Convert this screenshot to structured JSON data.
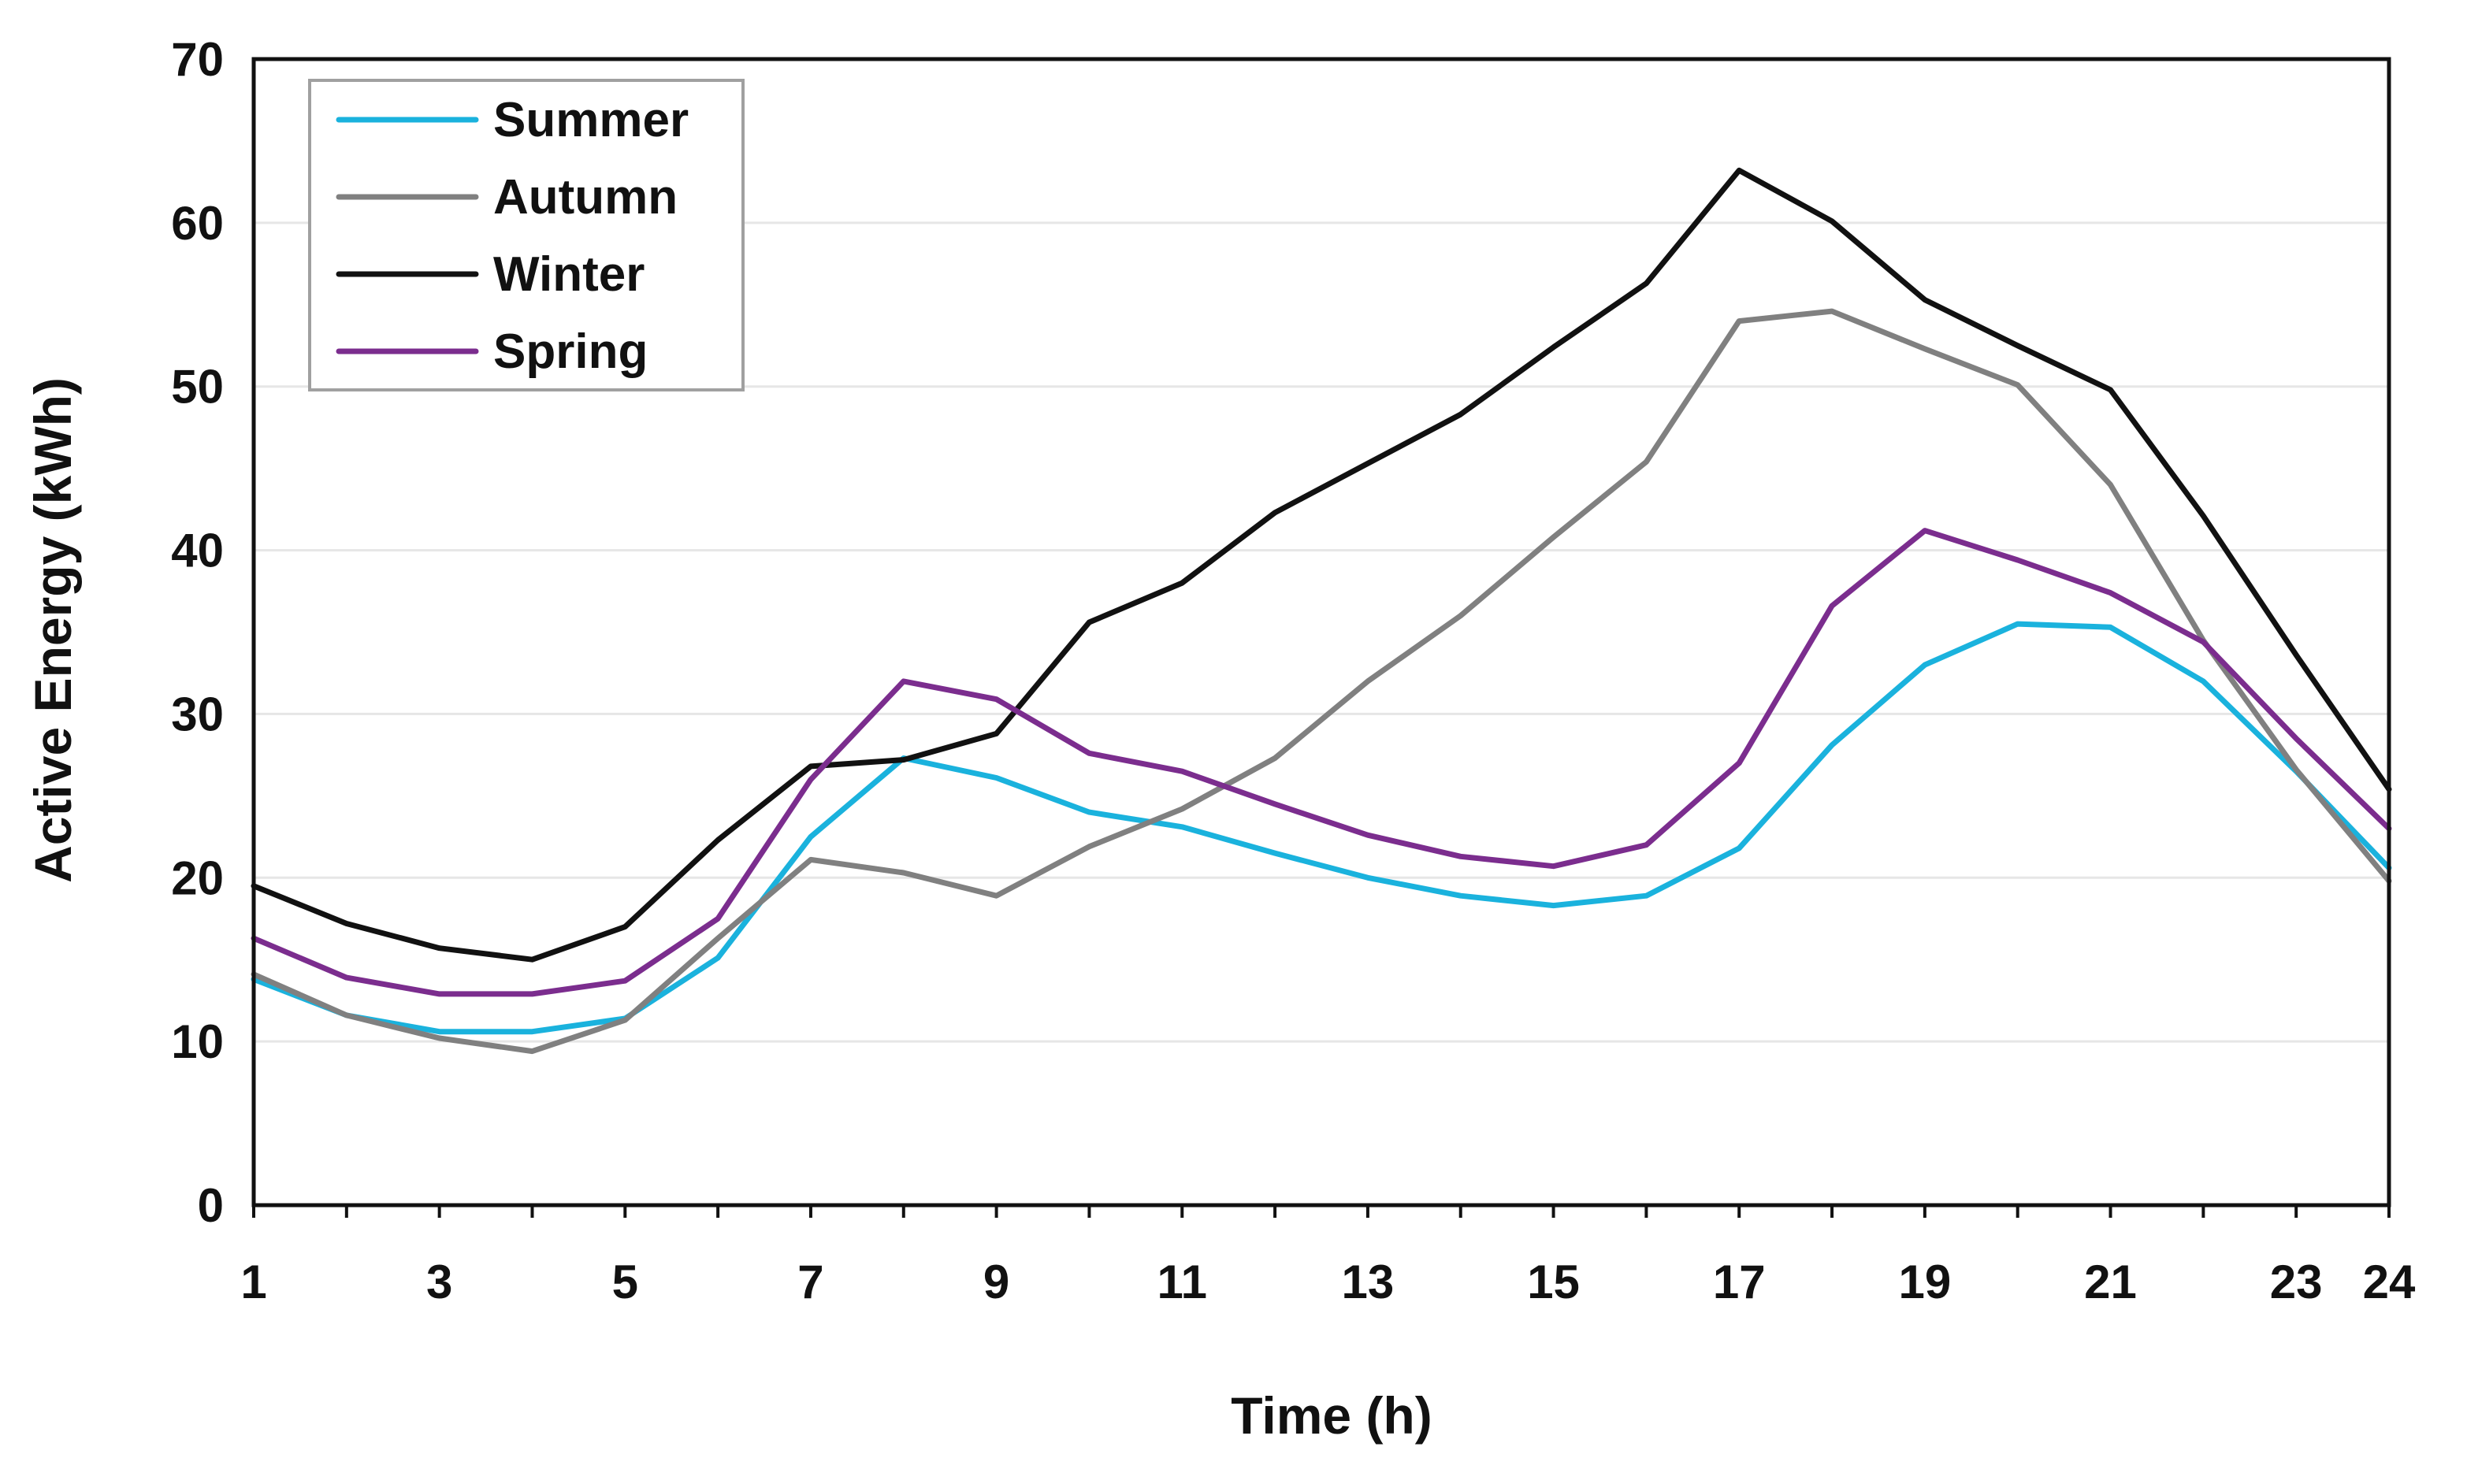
{
  "chart_data": {
    "type": "line",
    "title": "",
    "xlabel": "Time (h)",
    "ylabel": "Active Energy (kWh)",
    "xlim": [
      1,
      24
    ],
    "ylim": [
      0,
      70
    ],
    "x": [
      1,
      2,
      3,
      4,
      5,
      6,
      7,
      8,
      9,
      10,
      11,
      12,
      13,
      14,
      15,
      16,
      17,
      18,
      19,
      20,
      21,
      22,
      23,
      24
    ],
    "x_ticks": [
      1,
      3,
      5,
      7,
      9,
      11,
      13,
      15,
      17,
      19,
      21,
      23,
      24
    ],
    "y_ticks": [
      0,
      10,
      20,
      30,
      40,
      50,
      60,
      70
    ],
    "grid": true,
    "legend_position": "top-left",
    "series": [
      {
        "name": "Summer",
        "color": "#1ab2dd",
        "values": [
          13.8,
          11.6,
          10.6,
          10.6,
          11.4,
          15.1,
          22.5,
          27.3,
          26.1,
          24.0,
          23.1,
          21.5,
          20.0,
          18.9,
          18.3,
          18.9,
          21.8,
          28.1,
          33.0,
          35.5,
          35.3,
          32.0,
          26.5,
          20.6
        ]
      },
      {
        "name": "Autumn",
        "color": "#808080",
        "values": [
          14.1,
          11.6,
          10.2,
          9.4,
          11.3,
          16.3,
          21.1,
          20.3,
          18.9,
          21.9,
          24.2,
          27.3,
          32.0,
          36.0,
          40.8,
          45.4,
          54.0,
          54.6,
          52.3,
          50.1,
          44.0,
          34.5,
          26.6,
          19.8
        ]
      },
      {
        "name": "Winter",
        "color": "#111111",
        "values": [
          19.5,
          17.2,
          15.7,
          15.0,
          17.0,
          22.3,
          26.8,
          27.2,
          28.8,
          35.6,
          38.0,
          42.3,
          45.3,
          48.3,
          52.4,
          56.3,
          63.2,
          60.1,
          55.3,
          52.5,
          49.8,
          42.1,
          33.6,
          25.4
        ]
      },
      {
        "name": "Spring",
        "color": "#7b2d8e",
        "values": [
          16.3,
          13.9,
          12.9,
          12.9,
          13.7,
          17.5,
          26.0,
          32.0,
          30.9,
          27.6,
          26.5,
          24.5,
          22.6,
          21.3,
          20.7,
          22.0,
          27.0,
          36.6,
          41.2,
          39.4,
          37.4,
          34.4,
          28.5,
          23.0
        ]
      }
    ]
  }
}
